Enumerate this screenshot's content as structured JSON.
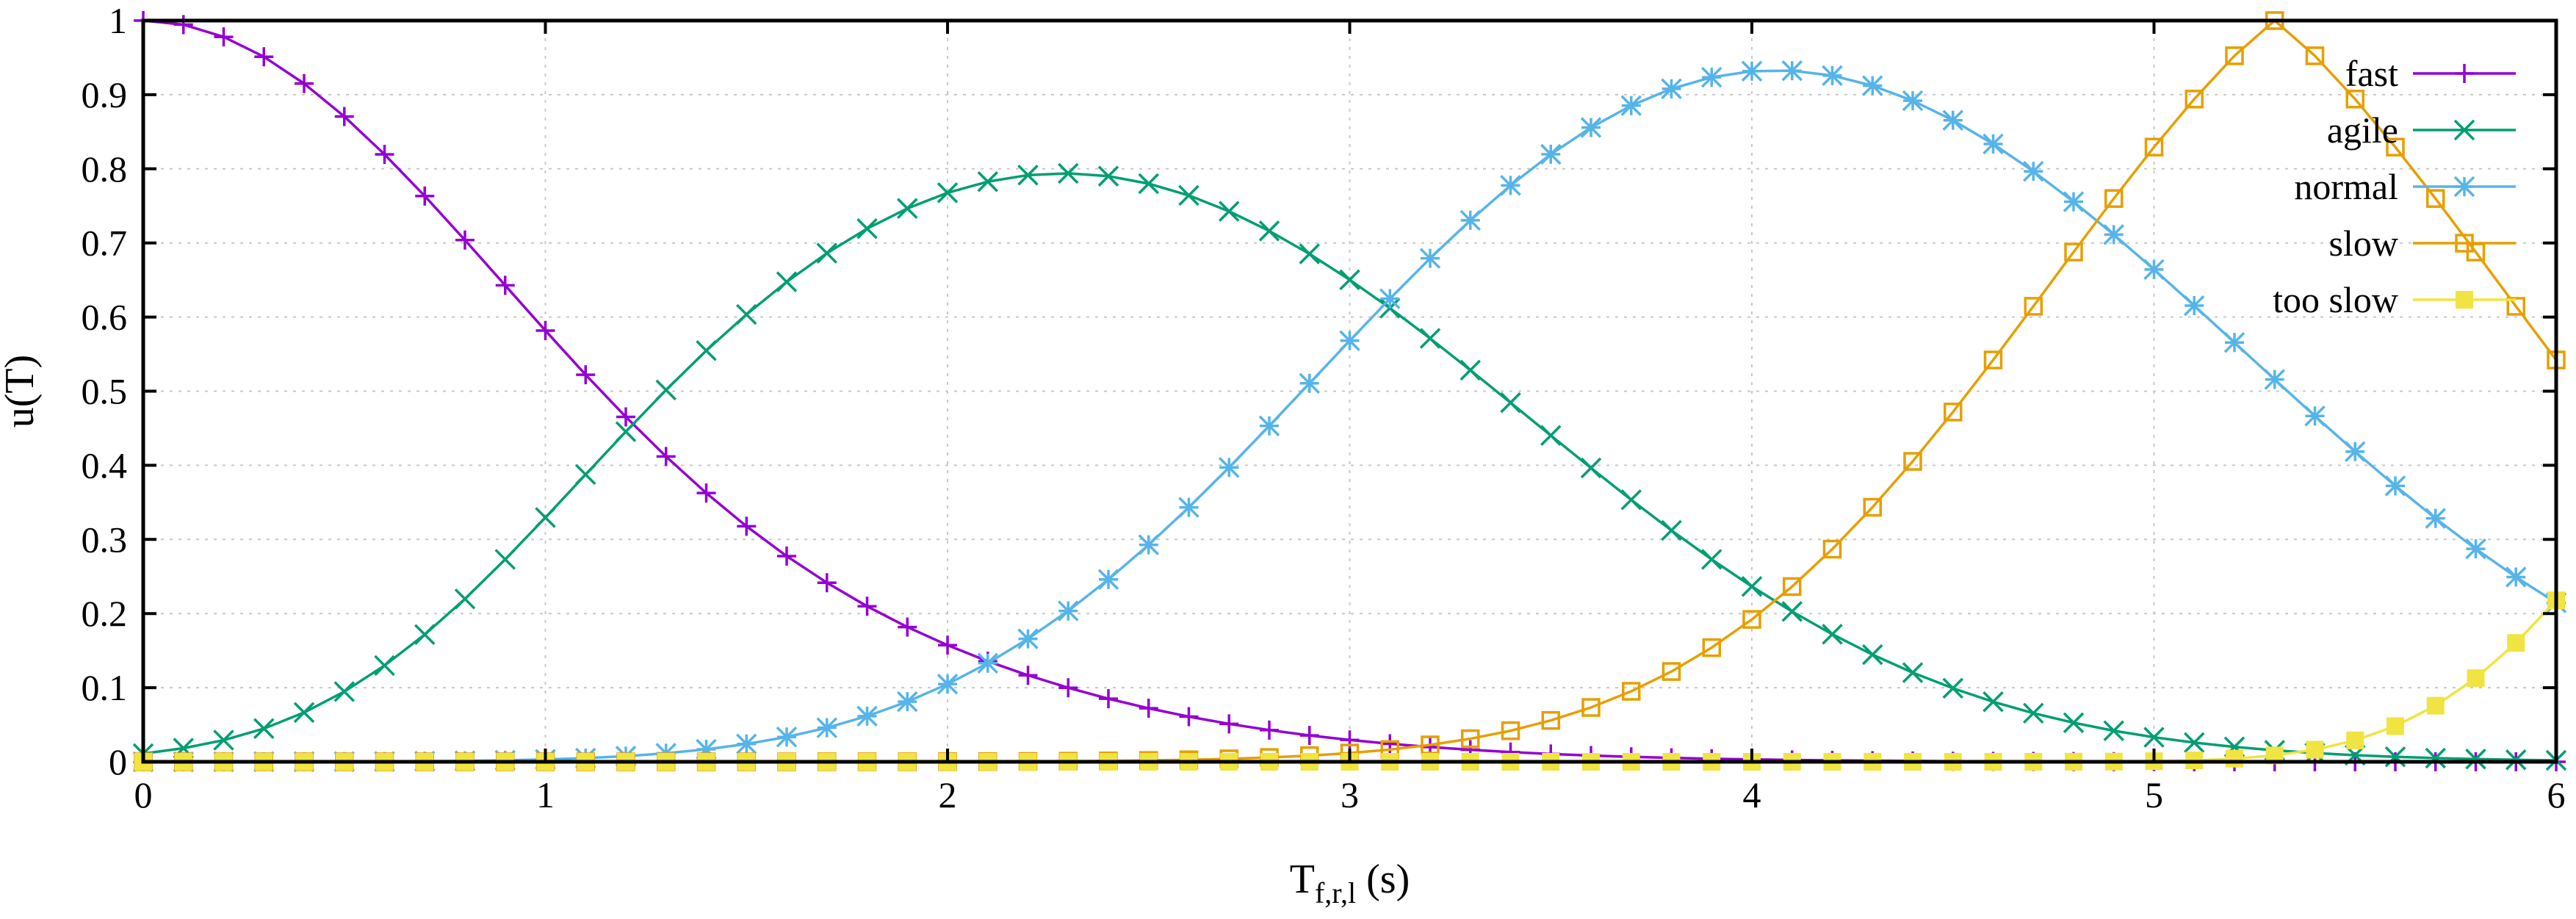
{
  "chart_data": {
    "type": "line",
    "title": "",
    "xlabel": {
      "base": "T",
      "subscript": "f,r,l",
      "suffix": " (s)"
    },
    "ylabel": "u(T)",
    "xlim": [
      0,
      6
    ],
    "ylim": [
      0,
      1
    ],
    "xticks": [
      0,
      1,
      2,
      3,
      4,
      5,
      6
    ],
    "xtick_labels": [
      "0",
      "1",
      "2",
      "3",
      "4",
      "5",
      "6"
    ],
    "yticks": [
      0,
      0.1,
      0.2,
      0.3,
      0.4,
      0.5,
      0.6,
      0.7,
      0.8,
      0.9,
      1
    ],
    "ytick_labels": [
      "0",
      "0.1",
      "0.2",
      "0.3",
      "0.4",
      "0.5",
      "0.6",
      "0.7",
      "0.8",
      "0.9",
      "1"
    ],
    "grid": true,
    "legend_position": "top-right",
    "x": [
      0,
      0.1,
      0.2,
      0.3,
      0.4,
      0.5,
      0.6,
      0.7,
      0.8,
      0.9,
      1,
      1.1,
      1.2,
      1.3,
      1.4,
      1.5,
      1.6,
      1.7,
      1.8,
      1.9,
      2,
      2.1,
      2.2,
      2.3,
      2.4,
      2.5,
      2.6,
      2.7,
      2.8,
      2.9,
      3,
      3.1,
      3.2,
      3.3,
      3.4,
      3.5,
      3.6,
      3.7,
      3.8,
      3.9,
      4,
      4.1,
      4.2,
      4.3,
      4.4,
      4.5,
      4.6,
      4.7,
      4.8,
      4.9,
      5,
      5.1,
      5.2,
      5.3,
      5.4,
      5.5,
      5.6,
      5.7,
      5.8,
      5.9,
      6
    ],
    "series": [
      {
        "name": "fast",
        "color": "#9400d3",
        "marker": "plus",
        "values": [
          1,
          0.9945,
          0.978,
          0.9512,
          0.915,
          0.8706,
          0.8195,
          0.7633,
          0.7039,
          0.6428,
          0.5818,
          0.5222,
          0.4653,
          0.4119,
          0.3626,
          0.3178,
          0.2775,
          0.2416,
          0.2098,
          0.1818,
          0.1573,
          0.1357,
          0.1167,
          0.0999,
          0.0851,
          0.0722,
          0.0609,
          0.0512,
          0.0428,
          0.0356,
          0.0295,
          0.0243,
          0.0199,
          0.0162,
          0.0131,
          0.0105,
          0.0084,
          0.0067,
          0.0053,
          0.0041,
          0.0032,
          0.0025,
          0.0019,
          0.0015,
          0.0011,
          0.0008,
          0.0006,
          0.0005,
          0.0004,
          0.0003,
          0.0002,
          0.0001,
          0.0001,
          0.0001,
          0,
          0,
          0,
          0,
          0,
          0,
          0
        ]
      },
      {
        "name": "agile",
        "color": "#009e73",
        "marker": "cross",
        "values": [
          0.011,
          0.0183,
          0.0292,
          0.0448,
          0.0665,
          0.0947,
          0.1299,
          0.1717,
          0.2197,
          0.2731,
          0.3295,
          0.3876,
          0.4454,
          0.5016,
          0.5548,
          0.6035,
          0.6475,
          0.6862,
          0.7193,
          0.7465,
          0.7677,
          0.7827,
          0.7915,
          0.7939,
          0.7901,
          0.78,
          0.7641,
          0.7427,
          0.7162,
          0.6852,
          0.6503,
          0.6121,
          0.5712,
          0.5284,
          0.4845,
          0.4403,
          0.3964,
          0.3535,
          0.3122,
          0.2731,
          0.2365,
          0.2028,
          0.1721,
          0.1446,
          0.1203,
          0.0992,
          0.081,
          0.0656,
          0.0527,
          0.0419,
          0.0331,
          0.0259,
          0.0201,
          0.0155,
          0.0118,
          0.0089,
          0.0067,
          0.005,
          0.0037,
          0.0027,
          0.002
        ]
      },
      {
        "name": "normal",
        "color": "#56b4e9",
        "marker": "star",
        "values": [
          0,
          0,
          0,
          0.0001,
          0.0001,
          0.0002,
          0.0004,
          0.0007,
          0.0012,
          0.002,
          0.0032,
          0.005,
          0.0077,
          0.0115,
          0.0168,
          0.024,
          0.0335,
          0.0459,
          0.0616,
          0.0811,
          0.1048,
          0.133,
          0.1659,
          0.2036,
          0.246,
          0.2927,
          0.3433,
          0.3971,
          0.4532,
          0.5106,
          0.5681,
          0.6247,
          0.6792,
          0.7305,
          0.7776,
          0.8196,
          0.8557,
          0.8853,
          0.908,
          0.9235,
          0.9317,
          0.9324,
          0.9258,
          0.9122,
          0.8919,
          0.8655,
          0.8335,
          0.7966,
          0.7556,
          0.7112,
          0.6642,
          0.6154,
          0.5657,
          0.5158,
          0.4665,
          0.4185,
          0.3723,
          0.3284,
          0.2873,
          0.2493,
          0.2145
        ]
      },
      {
        "name": "slow",
        "color": "#e69f00",
        "marker": "open-square",
        "values": [
          0,
          0,
          0,
          0,
          0,
          0,
          0,
          0,
          0,
          0,
          0,
          0,
          0,
          0,
          0,
          0,
          0,
          0.0001,
          0.0001,
          0.0001,
          0.0002,
          0.0003,
          0.0005,
          0.0008,
          0.0012,
          0.0018,
          0.0027,
          0.004,
          0.0058,
          0.0083,
          0.0118,
          0.0165,
          0.0228,
          0.0311,
          0.0419,
          0.0558,
          0.0733,
          0.0951,
          0.1218,
          0.154,
          0.1921,
          0.2364,
          0.2869,
          0.3434,
          0.4053,
          0.4719,
          0.5421,
          0.6145,
          0.6877,
          0.7599,
          0.8293,
          0.8941,
          0.9525,
          1,
          0.9525,
          0.8941,
          0.8293,
          0.7599,
          0.6877,
          0.6145,
          0.5421
        ]
      },
      {
        "name": "too slow",
        "color": "#f0e442",
        "marker": "filled-square",
        "values": [
          0,
          0,
          0,
          0,
          0,
          0,
          0,
          0,
          0,
          0,
          0,
          0,
          0,
          0,
          0,
          0,
          0,
          0,
          0,
          0,
          0,
          0,
          0,
          0,
          0,
          0,
          0,
          0,
          0,
          0,
          0,
          0,
          0,
          0,
          0,
          0,
          0,
          0,
          0,
          0,
          0,
          0,
          0,
          0,
          0,
          0,
          0,
          0,
          0.0001,
          0.0003,
          0.0008,
          0.0019,
          0.0042,
          0.0086,
          0.0163,
          0.0289,
          0.0481,
          0.0757,
          0.1128,
          0.1603,
          0.2178
        ]
      }
    ]
  }
}
